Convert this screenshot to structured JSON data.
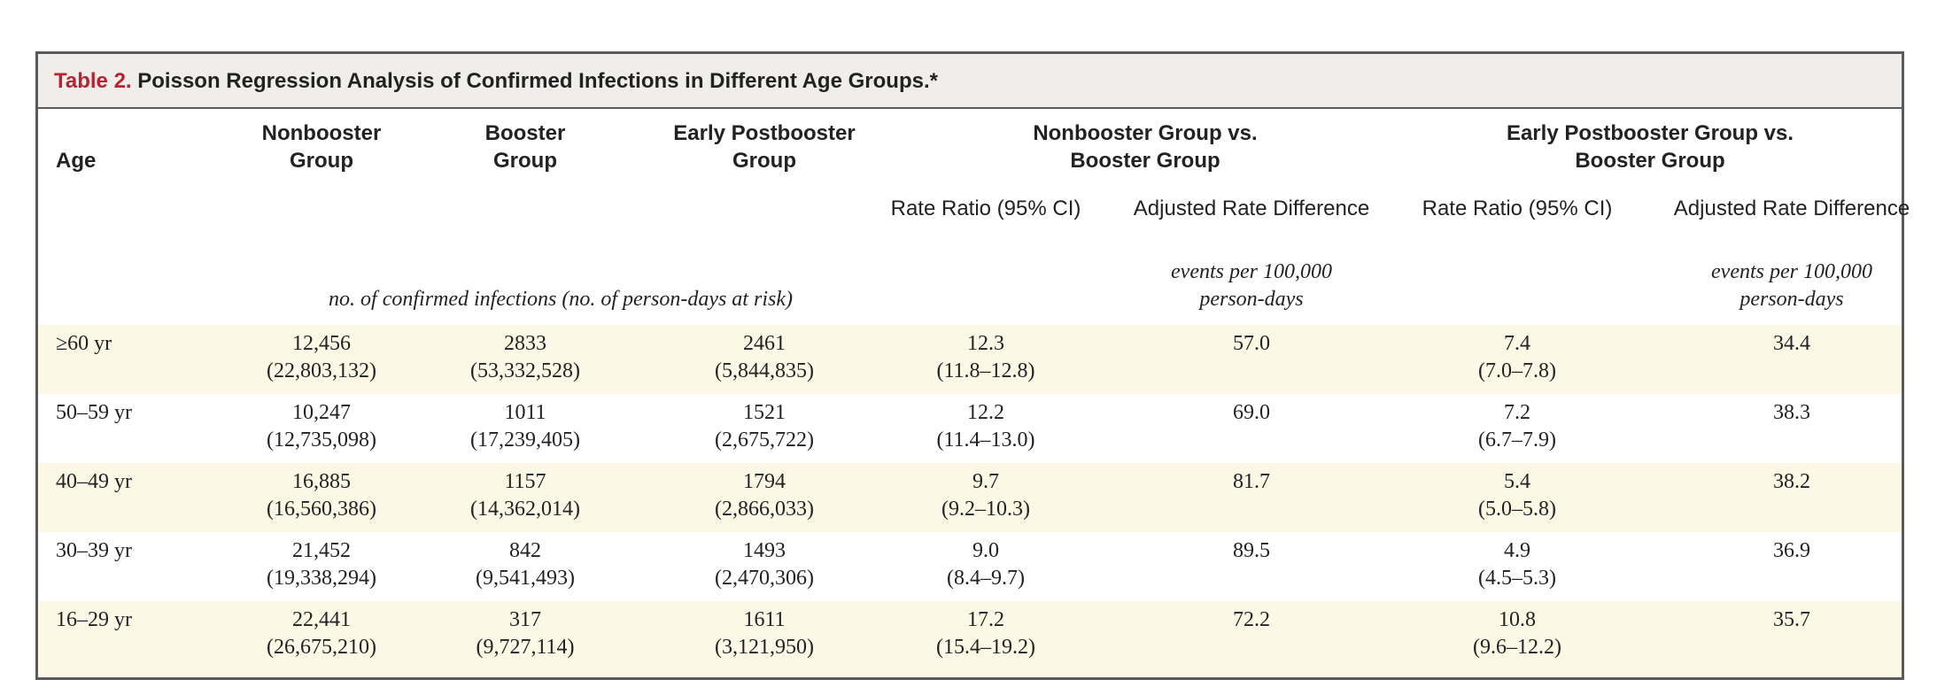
{
  "table": {
    "label": "Table 2.",
    "title": " Poisson Regression Analysis of Confirmed Infections in Different Age Groups.*",
    "headers": {
      "age": "Age",
      "nonbooster_l1": "Nonbooster",
      "nonbooster_l2": "Group",
      "booster_l1": "Booster",
      "booster_l2": "Group",
      "early_l1": "Early Postbooster",
      "early_l2": "Group",
      "nbvb_l1": "Nonbooster Group vs.",
      "nbvb_l2": "Booster Group",
      "epvb_l1": "Early Postbooster Group vs.",
      "epvb_l2": "Booster Group",
      "rate_ratio_1": "Rate Ratio (95% CI)",
      "adj_diff_1": "Adjusted Rate Difference",
      "rate_ratio_2": "Rate Ratio (95% CI)",
      "adj_diff_2": "Adjusted Rate Difference",
      "units_counts": "no. of confirmed infections (no. of person-days at risk)",
      "units_diff_1_l1": "events per 100,000",
      "units_diff_1_l2": "person-days",
      "units_diff_2_l1": "events per 100,000",
      "units_diff_2_l2": "person-days"
    },
    "rows": [
      {
        "age": "≥60 yr",
        "nb_count": "12,456",
        "nb_days": "(22,803,132)",
        "b_count": "2833",
        "b_days": "(53,332,528)",
        "ep_count": "2461",
        "ep_days": "(5,844,835)",
        "rr1": "12.3",
        "rr1_ci": "(11.8–12.8)",
        "diff1": "57.0",
        "rr2": "7.4",
        "rr2_ci": "(7.0–7.8)",
        "diff2": "34.4"
      },
      {
        "age": "50–59 yr",
        "nb_count": "10,247",
        "nb_days": "(12,735,098)",
        "b_count": "1011",
        "b_days": "(17,239,405)",
        "ep_count": "1521",
        "ep_days": "(2,675,722)",
        "rr1": "12.2",
        "rr1_ci": "(11.4–13.0)",
        "diff1": "69.0",
        "rr2": "7.2",
        "rr2_ci": "(6.7–7.9)",
        "diff2": "38.3"
      },
      {
        "age": "40–49 yr",
        "nb_count": "16,885",
        "nb_days": "(16,560,386)",
        "b_count": "1157",
        "b_days": "(14,362,014)",
        "ep_count": "1794",
        "ep_days": "(2,866,033)",
        "rr1": "9.7",
        "rr1_ci": "(9.2–10.3)",
        "diff1": "81.7",
        "rr2": "5.4",
        "rr2_ci": "(5.0–5.8)",
        "diff2": "38.2"
      },
      {
        "age": "30–39 yr",
        "nb_count": "21,452",
        "nb_days": "(19,338,294)",
        "b_count": "842",
        "b_days": "(9,541,493)",
        "ep_count": "1493",
        "ep_days": "(2,470,306)",
        "rr1": "9.0",
        "rr1_ci": "(8.4–9.7)",
        "diff1": "89.5",
        "rr2": "4.9",
        "rr2_ci": "(4.5–5.3)",
        "diff2": "36.9"
      },
      {
        "age": "16–29 yr",
        "nb_count": "22,441",
        "nb_days": "(26,675,210)",
        "b_count": "317",
        "b_days": "(9,727,114)",
        "ep_count": "1611",
        "ep_days": "(3,121,950)",
        "rr1": "17.2",
        "rr1_ci": "(15.4–19.2)",
        "diff1": "72.2",
        "rr2": "10.8",
        "rr2_ci": "(9.6–12.2)",
        "diff2": "35.7"
      }
    ]
  }
}
